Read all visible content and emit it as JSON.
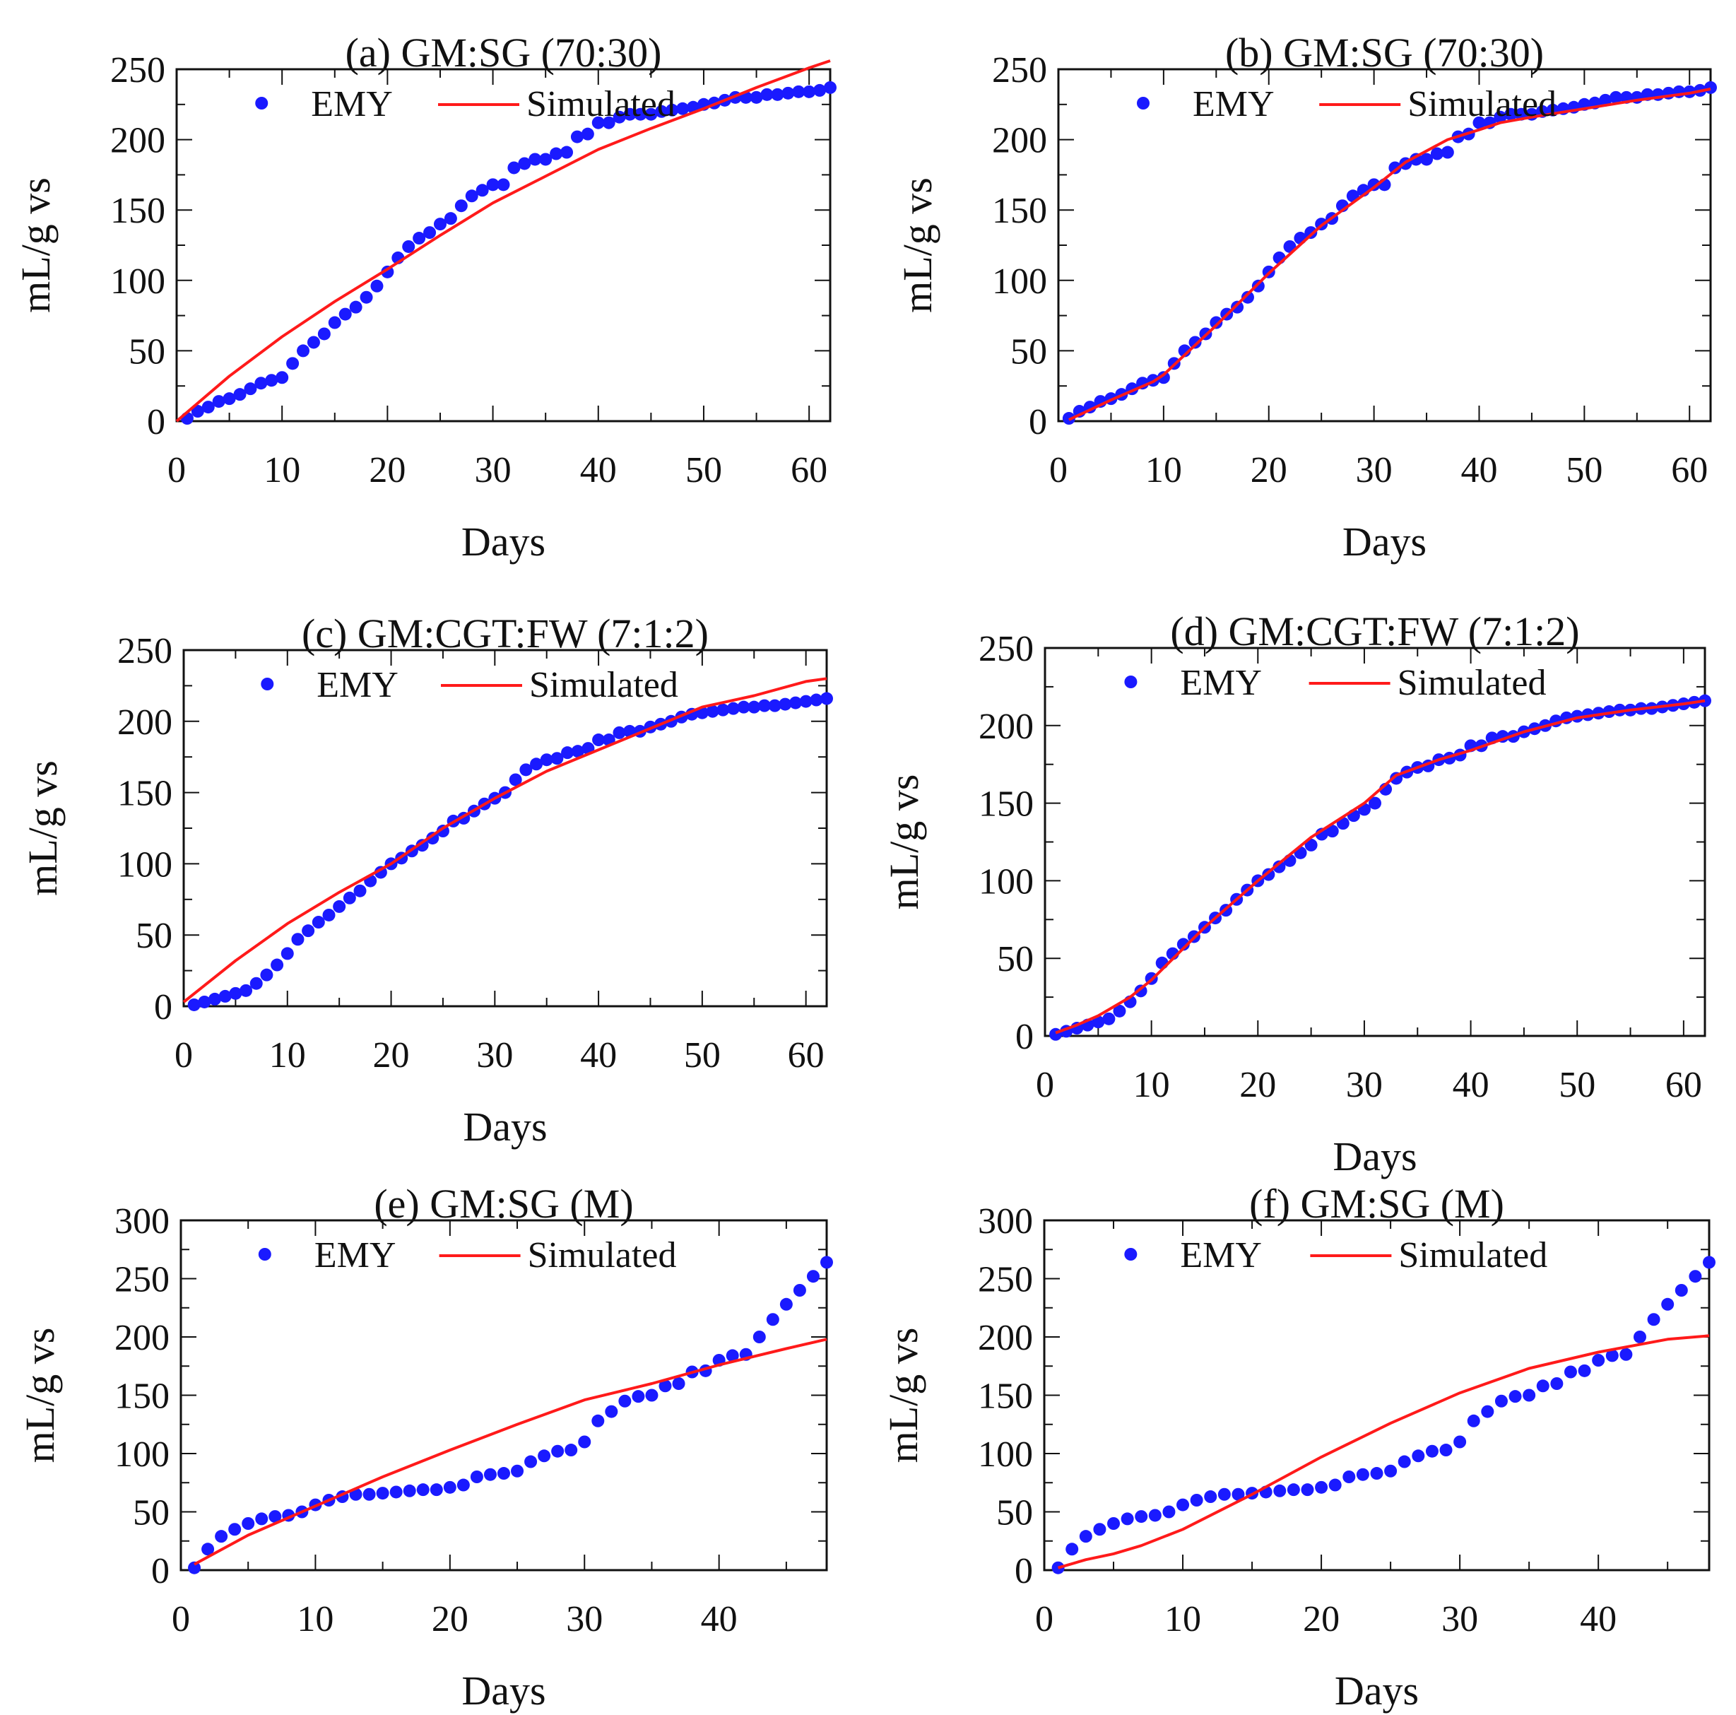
{
  "figure": {
    "series_labels": {
      "observed": "EMY",
      "model": "Simulated"
    },
    "colors": {
      "observed": "#1a1aff",
      "model": "#ff1a1a",
      "axis": "#111111"
    }
  },
  "chart_data": [
    {
      "id": "a",
      "type": "line",
      "title": "(a) GM:SG (70:30)",
      "xlabel": "Days",
      "ylabel": "mL/g vs",
      "xlim": [
        0,
        62
      ],
      "ylim": [
        0,
        250
      ],
      "xticks": [
        0,
        10,
        20,
        30,
        40,
        50,
        60
      ],
      "yticks": [
        0,
        50,
        100,
        150,
        200,
        250
      ],
      "legend_position": "top",
      "series": [
        {
          "name": "EMY",
          "kind": "scatter",
          "x": [
            1,
            2,
            3,
            4,
            5,
            6,
            7,
            8,
            9,
            10,
            11,
            12,
            13,
            14,
            15,
            16,
            17,
            18,
            19,
            20,
            21,
            22,
            23,
            24,
            25,
            26,
            27,
            28,
            29,
            30,
            31,
            32,
            33,
            34,
            35,
            36,
            37,
            38,
            39,
            40,
            41,
            42,
            43,
            44,
            45,
            46,
            47,
            48,
            49,
            50,
            51,
            52,
            53,
            54,
            55,
            56,
            57,
            58,
            59,
            60,
            61,
            62
          ],
          "y": [
            2,
            7,
            10,
            14,
            16,
            19,
            23,
            27,
            29,
            31,
            41,
            50,
            56,
            62,
            70,
            76,
            81,
            88,
            96,
            106,
            116,
            124,
            130,
            134,
            140,
            144,
            153,
            160,
            164,
            168,
            168,
            180,
            183,
            186,
            186,
            190,
            191,
            202,
            204,
            212,
            212,
            216,
            218,
            218,
            218,
            220,
            221,
            222,
            223,
            225,
            226,
            228,
            230,
            230,
            230,
            232,
            232,
            233,
            234,
            234,
            235,
            237
          ]
        },
        {
          "name": "Simulated",
          "kind": "line",
          "x": [
            0,
            5,
            10,
            15,
            20,
            25,
            30,
            35,
            40,
            45,
            50,
            55,
            60,
            62
          ],
          "y": [
            0,
            32,
            60,
            85,
            108,
            132,
            155,
            174,
            193,
            208,
            222,
            237,
            251,
            256
          ]
        }
      ]
    },
    {
      "id": "b",
      "type": "line",
      "title": "(b) GM:SG (70:30)",
      "xlabel": "Days",
      "ylabel": "mL/g vs",
      "xlim": [
        0,
        62
      ],
      "ylim": [
        0,
        250
      ],
      "xticks": [
        0,
        10,
        20,
        30,
        40,
        50,
        60
      ],
      "yticks": [
        0,
        50,
        100,
        150,
        200,
        250
      ],
      "legend_position": "top",
      "series": [
        {
          "name": "EMY",
          "kind": "scatter",
          "x": [
            1,
            2,
            3,
            4,
            5,
            6,
            7,
            8,
            9,
            10,
            11,
            12,
            13,
            14,
            15,
            16,
            17,
            18,
            19,
            20,
            21,
            22,
            23,
            24,
            25,
            26,
            27,
            28,
            29,
            30,
            31,
            32,
            33,
            34,
            35,
            36,
            37,
            38,
            39,
            40,
            41,
            42,
            43,
            44,
            45,
            46,
            47,
            48,
            49,
            50,
            51,
            52,
            53,
            54,
            55,
            56,
            57,
            58,
            59,
            60,
            61,
            62
          ],
          "y": [
            2,
            7,
            10,
            14,
            16,
            19,
            23,
            27,
            29,
            31,
            41,
            50,
            56,
            62,
            70,
            76,
            81,
            88,
            96,
            106,
            116,
            124,
            130,
            134,
            140,
            144,
            153,
            160,
            164,
            168,
            168,
            180,
            183,
            186,
            186,
            190,
            191,
            202,
            204,
            212,
            212,
            216,
            218,
            218,
            218,
            220,
            221,
            222,
            223,
            225,
            226,
            228,
            230,
            230,
            230,
            232,
            232,
            233,
            234,
            234,
            235,
            237
          ]
        },
        {
          "name": "Simulated",
          "kind": "line",
          "x": [
            1,
            5,
            9,
            10,
            12,
            15,
            20,
            25,
            30,
            33,
            37,
            40,
            42,
            45,
            50,
            55,
            60,
            62
          ],
          "y": [
            1,
            15,
            28,
            33,
            47,
            68,
            105,
            139,
            166,
            184,
            200,
            207,
            212,
            216,
            222,
            228,
            233,
            236
          ]
        }
      ]
    },
    {
      "id": "c",
      "type": "line",
      "title": "(c) GM:CGT:FW (7:1:2)",
      "xlabel": "Days",
      "ylabel": "mL/g vs",
      "xlim": [
        0,
        62
      ],
      "ylim": [
        0,
        250
      ],
      "xticks": [
        0,
        10,
        20,
        30,
        40,
        50,
        60
      ],
      "yticks": [
        0,
        50,
        100,
        150,
        200,
        250
      ],
      "legend_position": "top",
      "series": [
        {
          "name": "EMY",
          "kind": "scatter",
          "x": [
            1,
            2,
            3,
            4,
            5,
            6,
            7,
            8,
            9,
            10,
            11,
            12,
            13,
            14,
            15,
            16,
            17,
            18,
            19,
            20,
            21,
            22,
            23,
            24,
            25,
            26,
            27,
            28,
            29,
            30,
            31,
            32,
            33,
            34,
            35,
            36,
            37,
            38,
            39,
            40,
            41,
            42,
            43,
            44,
            45,
            46,
            47,
            48,
            49,
            50,
            51,
            52,
            53,
            54,
            55,
            56,
            57,
            58,
            59,
            60,
            61,
            62
          ],
          "y": [
            1,
            3,
            5,
            7,
            9,
            11,
            16,
            22,
            29,
            37,
            47,
            53,
            59,
            64,
            70,
            76,
            81,
            88,
            94,
            100,
            104,
            109,
            113,
            118,
            123,
            130,
            132,
            137,
            142,
            146,
            150,
            159,
            166,
            170,
            173,
            174,
            178,
            179,
            181,
            187,
            187,
            192,
            193,
            193,
            196,
            198,
            200,
            203,
            205,
            206,
            207,
            208,
            209,
            210,
            210,
            211,
            211,
            212,
            213,
            214,
            215,
            216
          ]
        },
        {
          "name": "Simulated",
          "kind": "line",
          "x": [
            0,
            5,
            10,
            15,
            20,
            25,
            30,
            35,
            40,
            45,
            50,
            55,
            60,
            62
          ],
          "y": [
            3,
            32,
            58,
            80,
            100,
            125,
            146,
            165,
            180,
            195,
            210,
            218,
            228,
            230
          ]
        }
      ]
    },
    {
      "id": "d",
      "type": "line",
      "title": "(d) GM:CGT:FW (7:1:2)",
      "xlabel": "Days",
      "ylabel": "mL/g vs",
      "xlim": [
        0,
        62
      ],
      "ylim": [
        0,
        250
      ],
      "xticks": [
        0,
        10,
        20,
        30,
        40,
        50,
        60
      ],
      "yticks": [
        0,
        50,
        100,
        150,
        200,
        250
      ],
      "legend_position": "top",
      "series": [
        {
          "name": "EMY",
          "kind": "scatter",
          "x": [
            1,
            2,
            3,
            4,
            5,
            6,
            7,
            8,
            9,
            10,
            11,
            12,
            13,
            14,
            15,
            16,
            17,
            18,
            19,
            20,
            21,
            22,
            23,
            24,
            25,
            26,
            27,
            28,
            29,
            30,
            31,
            32,
            33,
            34,
            35,
            36,
            37,
            38,
            39,
            40,
            41,
            42,
            43,
            44,
            45,
            46,
            47,
            48,
            49,
            50,
            51,
            52,
            53,
            54,
            55,
            56,
            57,
            58,
            59,
            60,
            61,
            62
          ],
          "y": [
            1,
            3,
            5,
            7,
            9,
            11,
            16,
            22,
            29,
            37,
            47,
            53,
            59,
            64,
            70,
            76,
            81,
            88,
            94,
            100,
            104,
            109,
            113,
            118,
            123,
            130,
            132,
            137,
            142,
            146,
            150,
            159,
            166,
            170,
            173,
            174,
            178,
            179,
            181,
            187,
            187,
            192,
            193,
            193,
            196,
            198,
            200,
            203,
            205,
            206,
            207,
            208,
            209,
            210,
            210,
            211,
            211,
            212,
            213,
            214,
            215,
            216
          ]
        },
        {
          "name": "Simulated",
          "kind": "line",
          "x": [
            1,
            3,
            5,
            8,
            10,
            15,
            20,
            25,
            30,
            33,
            37,
            40,
            45,
            50,
            55,
            60,
            62
          ],
          "y": [
            2,
            7,
            13,
            25,
            36,
            70,
            100,
            128,
            150,
            168,
            178,
            184,
            196,
            205,
            210,
            214,
            216
          ]
        }
      ]
    },
    {
      "id": "e",
      "type": "line",
      "title": "(e) GM:SG (M)",
      "xlabel": "Days",
      "ylabel": "mL/g vs",
      "xlim": [
        0,
        48
      ],
      "ylim": [
        0,
        300
      ],
      "xticks": [
        0,
        10,
        20,
        30,
        40
      ],
      "yticks": [
        0,
        50,
        100,
        150,
        200,
        250,
        300
      ],
      "legend_position": "top",
      "series": [
        {
          "name": "EMY",
          "kind": "scatter",
          "x": [
            1,
            2,
            3,
            4,
            5,
            6,
            7,
            8,
            9,
            10,
            11,
            12,
            13,
            14,
            15,
            16,
            17,
            18,
            19,
            20,
            21,
            22,
            23,
            24,
            25,
            26,
            27,
            28,
            29,
            30,
            31,
            32,
            33,
            34,
            35,
            36,
            37,
            38,
            39,
            40,
            41,
            42,
            43,
            44,
            45,
            46,
            47,
            48
          ],
          "y": [
            2,
            18,
            29,
            35,
            40,
            44,
            46,
            47,
            50,
            56,
            60,
            63,
            65,
            65,
            66,
            67,
            68,
            69,
            69,
            71,
            73,
            80,
            82,
            83,
            85,
            93,
            98,
            102,
            103,
            110,
            128,
            136,
            145,
            149,
            150,
            158,
            160,
            170,
            171,
            180,
            184,
            185,
            200,
            215,
            228,
            240,
            252,
            264
          ]
        },
        {
          "name": "Simulated",
          "kind": "line",
          "x": [
            1,
            5,
            10,
            15,
            20,
            25,
            30,
            35,
            40,
            45,
            48
          ],
          "y": [
            5,
            30,
            55,
            80,
            103,
            125,
            146,
            160,
            176,
            190,
            198
          ]
        }
      ]
    },
    {
      "id": "f",
      "type": "line",
      "title": "(f) GM:SG (M)",
      "xlabel": "Days",
      "ylabel": "mL/g vs",
      "xlim": [
        0,
        48
      ],
      "ylim": [
        0,
        300
      ],
      "xticks": [
        0,
        10,
        20,
        30,
        40
      ],
      "yticks": [
        0,
        50,
        100,
        150,
        200,
        250,
        300
      ],
      "legend_position": "top",
      "series": [
        {
          "name": "EMY",
          "kind": "scatter",
          "x": [
            1,
            2,
            3,
            4,
            5,
            6,
            7,
            8,
            9,
            10,
            11,
            12,
            13,
            14,
            15,
            16,
            17,
            18,
            19,
            20,
            21,
            22,
            23,
            24,
            25,
            26,
            27,
            28,
            29,
            30,
            31,
            32,
            33,
            34,
            35,
            36,
            37,
            38,
            39,
            40,
            41,
            42,
            43,
            44,
            45,
            46,
            47,
            48
          ],
          "y": [
            2,
            18,
            29,
            35,
            40,
            44,
            46,
            47,
            50,
            56,
            60,
            63,
            65,
            65,
            66,
            67,
            68,
            69,
            69,
            71,
            73,
            80,
            82,
            83,
            85,
            93,
            98,
            102,
            103,
            110,
            128,
            136,
            145,
            149,
            150,
            158,
            160,
            170,
            171,
            180,
            184,
            185,
            200,
            215,
            228,
            240,
            252,
            264
          ]
        },
        {
          "name": "Simulated",
          "kind": "line",
          "x": [
            1,
            3,
            5,
            7,
            10,
            15,
            20,
            25,
            30,
            35,
            40,
            45,
            48
          ],
          "y": [
            2,
            9,
            14,
            21,
            35,
            65,
            97,
            126,
            152,
            173,
            187,
            198,
            201
          ]
        }
      ]
    }
  ]
}
